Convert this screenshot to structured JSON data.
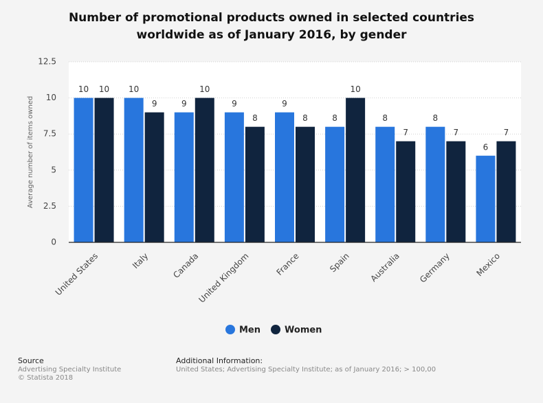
{
  "chart_data": {
    "type": "bar",
    "title": "Number of promotional products owned in selected countries worldwide as of January 2016, by gender",
    "y_label": "Average number of items owned",
    "categories": [
      "United States",
      "Italy",
      "Canada",
      "United Kingdom",
      "France",
      "Spain",
      "Australia",
      "Germany",
      "Mexico"
    ],
    "series": [
      {
        "name": "Men",
        "color": "#2876dd",
        "values": [
          10,
          10,
          9,
          9,
          9,
          8,
          8,
          8,
          6
        ]
      },
      {
        "name": "Women",
        "color": "#10243e",
        "values": [
          10,
          9,
          10,
          8,
          8,
          10,
          7,
          7,
          7
        ]
      }
    ],
    "ylim": [
      0,
      12.5
    ],
    "yticks": [
      0,
      2.5,
      5,
      7.5,
      10,
      12.5
    ],
    "grid": true,
    "legend": "bottom"
  },
  "footer": {
    "source_heading": "Source",
    "source": "Advertising Specialty Institute",
    "copyright": "© Statista 2018",
    "info_heading": "Additional Information:",
    "info": "United States; Advertising Specialty Institute; as of January 2016; > 100,00"
  }
}
